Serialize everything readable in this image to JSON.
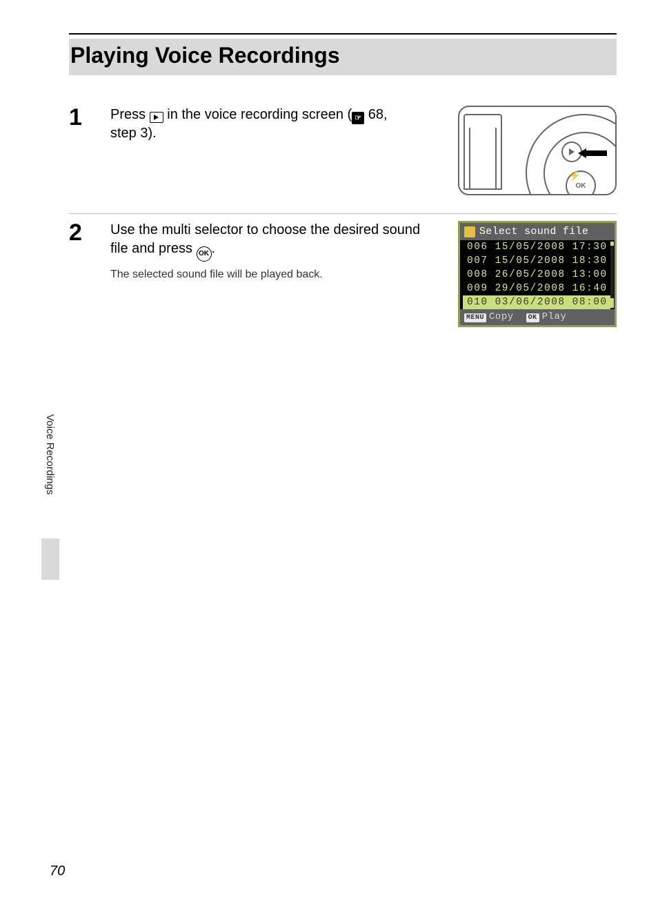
{
  "page": {
    "title": "Playing Voice Recordings",
    "side_tab": "Voice Recordings",
    "page_number": "70"
  },
  "steps": {
    "s1": {
      "number": "1",
      "text_a": "Press ",
      "text_b": " in the voice recording screen (",
      "ref_page": " 68,",
      "text_c": "step 3)."
    },
    "s2": {
      "number": "2",
      "text_a": "Use the multi selector to choose the desired sound file and press ",
      "text_b": ".",
      "note": "The selected sound file will be played back.",
      "ok_label": "OK"
    }
  },
  "camera": {
    "ok_label": "OK",
    "flash_glyph": "⚡"
  },
  "lcd": {
    "header": "Select sound file",
    "rows": [
      {
        "num": "006",
        "date": "15/05/2008",
        "time": "17:30",
        "selected": false
      },
      {
        "num": "007",
        "date": "15/05/2008",
        "time": "18:30",
        "selected": false
      },
      {
        "num": "008",
        "date": "26/05/2008",
        "time": "13:00",
        "selected": false
      },
      {
        "num": "009",
        "date": "29/05/2008",
        "time": "16:40",
        "selected": false
      },
      {
        "num": "010",
        "date": "03/06/2008",
        "time": "08:00",
        "selected": true
      }
    ],
    "footer": {
      "menu_tag": "MENU",
      "menu_label": "Copy",
      "ok_tag": "OK",
      "ok_label": "Play"
    },
    "colors": {
      "border": "#90a050",
      "row_text": "#d0e89a",
      "selected_bg": "#c7e07a",
      "selected_text": "#3a3a3a",
      "header_bg": "#606060"
    }
  }
}
